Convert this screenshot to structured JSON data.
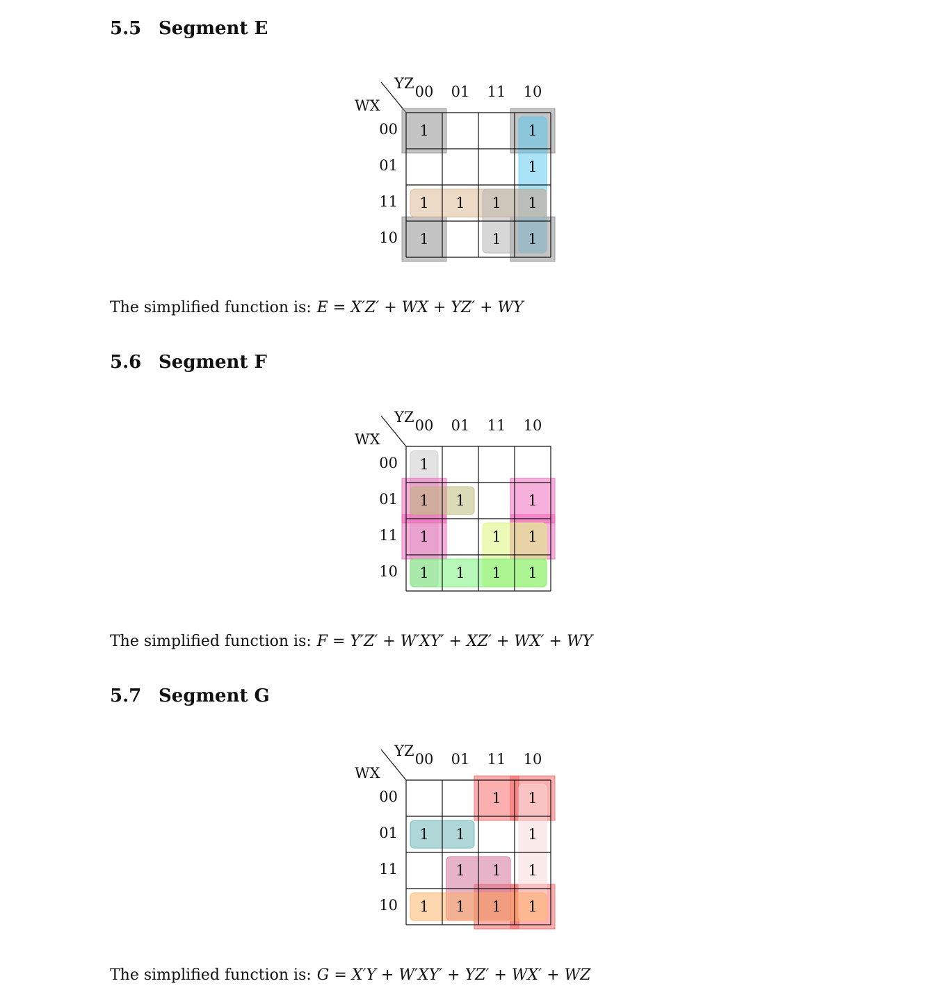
{
  "sections": [
    {
      "number": "5.5",
      "title": "Segment E",
      "kmap": {
        "row_var": "WX",
        "col_var": "YZ",
        "col_labels": [
          "00",
          "01",
          "11",
          "10"
        ],
        "row_labels": [
          "00",
          "01",
          "11",
          "10"
        ],
        "cells": [
          [
            "1",
            "",
            "",
            "1"
          ],
          [
            "",
            "",
            "",
            "1"
          ],
          [
            "1",
            "1",
            "1",
            "1"
          ],
          [
            "1",
            "",
            "1",
            "1"
          ]
        ],
        "groups": [
          {
            "cells": [
              [
                0,
                0
              ],
              [
                0,
                3
              ],
              [
                3,
                0
              ],
              [
                3,
                3
              ]
            ],
            "color": "#8a8a8a"
          },
          {
            "cells": [
              [
                0,
                3
              ],
              [
                1,
                3
              ],
              [
                2,
                3
              ],
              [
                3,
                3
              ]
            ],
            "color": "#55c8f0"
          },
          {
            "cells": [
              [
                2,
                0
              ],
              [
                2,
                1
              ],
              [
                2,
                2
              ],
              [
                2,
                3
              ]
            ],
            "color": "#d9b690"
          },
          {
            "cells": [
              [
                2,
                2
              ],
              [
                2,
                3
              ],
              [
                3,
                2
              ],
              [
                3,
                3
              ]
            ],
            "color": "#b0b0b0"
          }
        ]
      },
      "result_prefix": "The simplified function is:",
      "result_expr": "E = X′Z′ + WX + YZ′ + WY"
    },
    {
      "number": "5.6",
      "title": "Segment F",
      "kmap": {
        "row_var": "WX",
        "col_var": "YZ",
        "col_labels": [
          "00",
          "01",
          "11",
          "10"
        ],
        "row_labels": [
          "00",
          "01",
          "11",
          "10"
        ],
        "cells": [
          [
            "1",
            "",
            "",
            ""
          ],
          [
            "1",
            "1",
            "",
            "1"
          ],
          [
            "1",
            "",
            "1",
            "1"
          ],
          [
            "1",
            "1",
            "1",
            "1"
          ]
        ],
        "groups": [
          {
            "cells": [
              [
                0,
                0
              ],
              [
                1,
                0
              ],
              [
                2,
                0
              ],
              [
                3,
                0
              ]
            ],
            "color": "#c8c8c8"
          },
          {
            "cells": [
              [
                1,
                0
              ],
              [
                1,
                3
              ],
              [
                2,
                0
              ],
              [
                2,
                3
              ]
            ],
            "color": "#f060b8"
          },
          {
            "cells": [
              [
                1,
                0
              ],
              [
                1,
                1
              ]
            ],
            "color": "#b8b870"
          },
          {
            "cells": [
              [
                2,
                2
              ],
              [
                2,
                3
              ],
              [
                3,
                2
              ],
              [
                3,
                3
              ]
            ],
            "color": "#d8f870"
          },
          {
            "cells": [
              [
                3,
                0
              ],
              [
                3,
                1
              ],
              [
                3,
                2
              ],
              [
                3,
                3
              ]
            ],
            "color": "#70f070"
          }
        ]
      },
      "result_prefix": "The simplified function is:",
      "result_expr": "F = Y′Z′ + W′XY′ + XZ′ + WX′ + WY"
    },
    {
      "number": "5.7",
      "title": "Segment G",
      "kmap": {
        "row_var": "WX",
        "col_var": "YZ",
        "col_labels": [
          "00",
          "01",
          "11",
          "10"
        ],
        "row_labels": [
          "00",
          "01",
          "11",
          "10"
        ],
        "cells": [
          [
            "",
            "",
            "1",
            "1"
          ],
          [
            "1",
            "1",
            "",
            "1"
          ],
          [
            "",
            "1",
            "1",
            "1"
          ],
          [
            "1",
            "1",
            "1",
            "1"
          ]
        ],
        "groups": [
          {
            "cells": [
              [
                0,
                2
              ],
              [
                0,
                3
              ],
              [
                3,
                2
              ],
              [
                3,
                3
              ]
            ],
            "color": "#f86060"
          },
          {
            "cells": [
              [
                1,
                0
              ],
              [
                1,
                1
              ]
            ],
            "color": "#60b0b0"
          },
          {
            "cells": [
              [
                0,
                3
              ],
              [
                1,
                3
              ],
              [
                2,
                3
              ],
              [
                3,
                3
              ]
            ],
            "color": "#f8d8d8"
          },
          {
            "cells": [
              [
                2,
                1
              ],
              [
                2,
                2
              ],
              [
                3,
                1
              ],
              [
                3,
                2
              ]
            ],
            "color": "#d06890"
          },
          {
            "cells": [
              [
                3,
                0
              ],
              [
                3,
                1
              ],
              [
                3,
                2
              ],
              [
                3,
                3
              ]
            ],
            "color": "#ffb060"
          }
        ]
      },
      "result_prefix": "The simplified function is:",
      "result_expr": "G = X′Y + W′XY′ + YZ′ + WX′ + WZ"
    }
  ]
}
